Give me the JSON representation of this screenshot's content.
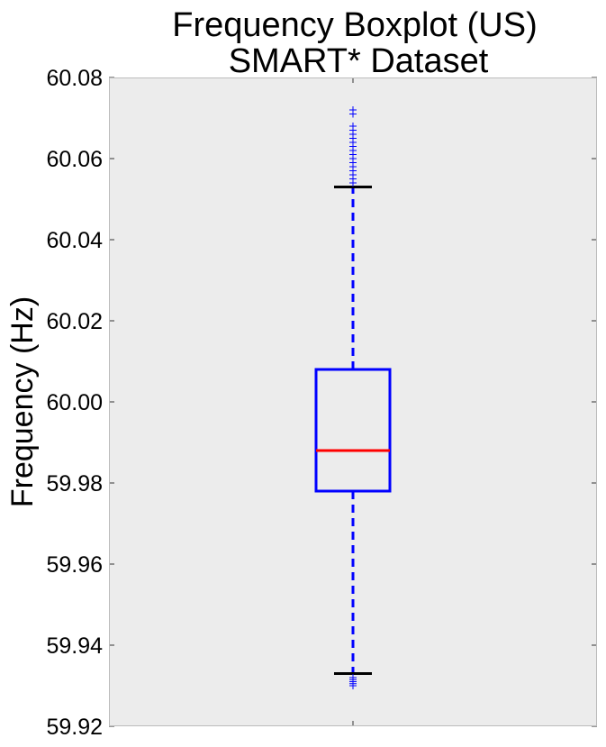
{
  "chart_data": {
    "type": "boxplot",
    "title": [
      "Frequency Boxplot (US)",
      "SMART* Dataset"
    ],
    "xlabel": "",
    "ylabel": "Frequency (Hz)",
    "ylim": [
      59.92,
      60.08
    ],
    "yticks": [
      "59.92",
      "59.94",
      "59.96",
      "59.98",
      "60.00",
      "60.02",
      "60.04",
      "60.06",
      "60.08"
    ],
    "ytick_values": [
      59.92,
      59.94,
      59.96,
      59.98,
      60.0,
      60.02,
      60.04,
      60.06,
      60.08
    ],
    "grid": false,
    "series": [
      {
        "name": "US",
        "whisker_low": 59.933,
        "q1": 59.978,
        "median": 59.988,
        "q3": 60.008,
        "whisker_high": 60.053,
        "outliers": [
          59.93,
          59.9305,
          59.931,
          59.9315,
          59.932,
          60.054,
          60.055,
          60.056,
          60.057,
          60.058,
          60.059,
          60.06,
          60.061,
          60.062,
          60.063,
          60.064,
          60.065,
          60.066,
          60.067,
          60.068,
          60.071,
          60.072
        ]
      }
    ],
    "colors": {
      "background": "#ececec",
      "frame": "#bcbcbc",
      "box": "#0000ff",
      "median": "#ff0000",
      "whisker": "#0000ff",
      "cap": "#000000",
      "flier": "#0000ff"
    }
  }
}
